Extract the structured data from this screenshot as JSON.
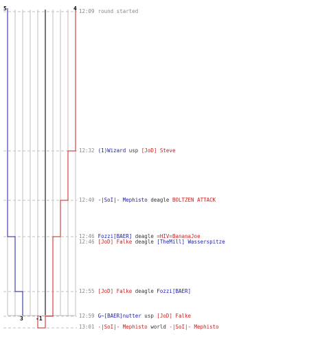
{
  "colors": {
    "blue": "#1a1aa6",
    "red": "#c81e1e",
    "grid": "#bfbfbf",
    "mid": "#777777",
    "text": "#888888"
  },
  "counters": {
    "top_left": "5",
    "top_right": "4",
    "bottom_left": "3",
    "bottom_right": "-1"
  },
  "events": [
    {
      "time": "12:09",
      "parts": [
        {
          "t": "round started",
          "c": "grey"
        }
      ]
    },
    {
      "time": "12:32",
      "parts": [
        {
          "t": "(1)Wizard",
          "c": "blue"
        },
        {
          "t": " usp ",
          "c": "dark"
        },
        {
          "t": "[JoD] Steve",
          "c": "red"
        }
      ]
    },
    {
      "time": "12:40",
      "parts": [
        {
          "t": "-|SoI|- Mephisto",
          "c": "blue"
        },
        {
          "t": " deagle ",
          "c": "dark"
        },
        {
          "t": "BOLTZEN ATTACK",
          "c": "red"
        }
      ]
    },
    {
      "time": "12:46",
      "parts": [
        {
          "t": "Fozzi[BAER]",
          "c": "blue"
        },
        {
          "t": " deagle ",
          "c": "dark"
        },
        {
          "t": "=HIV=BananaJoe",
          "c": "red"
        }
      ]
    },
    {
      "time": "12:46",
      "parts": [
        {
          "t": "[JoD] Falke",
          "c": "red"
        },
        {
          "t": " deagle ",
          "c": "dark"
        },
        {
          "t": "[TheMill] Wasserspitze",
          "c": "blue"
        }
      ]
    },
    {
      "time": "12:55",
      "parts": [
        {
          "t": "[JoD] Falke",
          "c": "red"
        },
        {
          "t": " deagle ",
          "c": "dark"
        },
        {
          "t": "Fozzi[BAER]",
          "c": "blue"
        }
      ]
    },
    {
      "time": "12:59",
      "parts": [
        {
          "t": "G~[BAER]nutter",
          "c": "blue"
        },
        {
          "t": " usp ",
          "c": "dark"
        },
        {
          "t": "[JoD] Falke",
          "c": "red"
        }
      ]
    },
    {
      "time": "13:01",
      "parts": [
        {
          "t": "-|SoI|- Mephisto",
          "c": "red"
        },
        {
          "t": " world ",
          "c": "dark"
        },
        {
          "t": "-|SoI|- Mephisto",
          "c": "red"
        }
      ]
    }
  ]
}
